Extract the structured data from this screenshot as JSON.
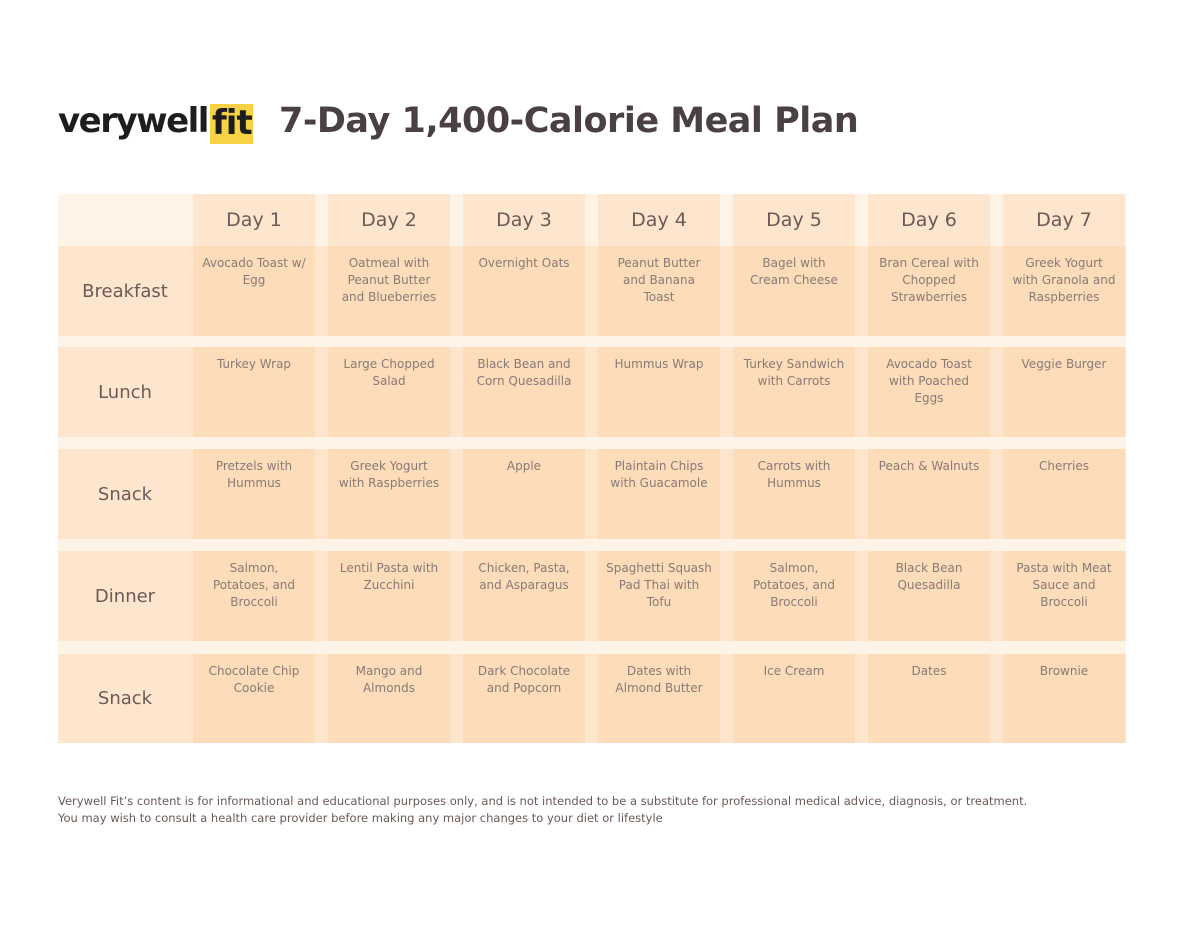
{
  "brand": {
    "logo_text": "verywell",
    "logo_badge": "fit"
  },
  "title": "7-Day 1,400-Calorie Meal Plan",
  "days": [
    "Day 1",
    "Day 2",
    "Day 3",
    "Day 4",
    "Day 5",
    "Day 6",
    "Day 7"
  ],
  "meals": [
    {
      "label": "Breakfast",
      "items": [
        "Avocado Toast w/ Egg",
        "Oatmeal with Peanut Butter and Blueberries",
        "Overnight Oats",
        "Peanut Butter and Banana Toast",
        "Bagel with Cream Cheese",
        "Bran Cereal with Chopped Strawberries",
        "Greek Yogurt with Granola and Raspberries"
      ]
    },
    {
      "label": "Lunch",
      "items": [
        "Turkey Wrap",
        "Large Chopped Salad",
        "Black Bean and Corn Quesadilla",
        "Hummus Wrap",
        "Turkey Sandwich with Carrots",
        "Avocado Toast with Poached Eggs",
        "Veggie Burger"
      ]
    },
    {
      "label": "Snack",
      "items": [
        "Pretzels with Hummus",
        "Greek Yogurt with Raspberries",
        "Apple",
        "Plaintain Chips with Guacamole",
        "Carrots with Hummus",
        "Peach & Walnuts",
        "Cherries"
      ]
    },
    {
      "label": "Dinner",
      "items": [
        "Salmon, Potatoes, and Broccoli",
        "Lentil Pasta with Zucchini",
        "Chicken, Pasta, and Asparagus",
        "Spaghetti Squash Pad Thai with Tofu",
        "Salmon, Potatoes, and Broccoli",
        "Black Bean Quesadilla",
        "Pasta with Meat Sauce and Broccoli"
      ]
    },
    {
      "label": "Snack",
      "items": [
        "Chocolate Chip Cookie",
        "Mango and Almonds",
        "Dark Chocolate and Popcorn",
        "Dates with Almond Butter",
        "Ice Cream",
        "Dates",
        "Brownie"
      ]
    }
  ],
  "footer": {
    "line1": "Verywell Fit’s content is for informational and educational purposes only, and is not intended to be a substitute for professional medical advice, diagnosis, or treatment.",
    "line2": "You may wish to consult a health care provider before making any major changes to your diet or lifestyle"
  }
}
